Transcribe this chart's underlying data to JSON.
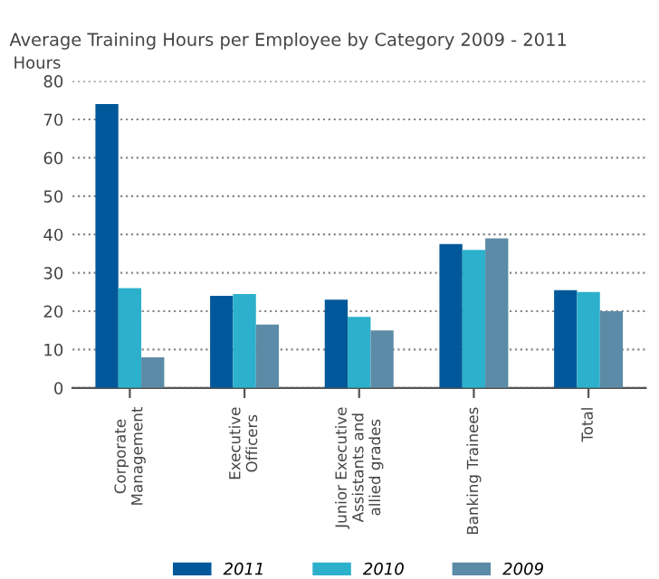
{
  "chart_data": {
    "type": "bar",
    "title": "Average Training Hours per Employee by Category 2009 - 2011",
    "ylabel": "Hours",
    "categories": [
      "Corporate\nManagement",
      "Executive\nOfficers",
      "Junior Executive\nAssistants and\nallied grades",
      "Banking Trainees",
      "Total"
    ],
    "series": [
      {
        "name": "2011",
        "color": "#00589a",
        "values": [
          74,
          24,
          23,
          37.5,
          25.5
        ]
      },
      {
        "name": "2010",
        "color": "#2cb0cc",
        "values": [
          26,
          24.5,
          18.5,
          36,
          25
        ]
      },
      {
        "name": "2009",
        "color": "#5b8ba6",
        "values": [
          8,
          16.5,
          15,
          39,
          20
        ]
      }
    ],
    "ylim": [
      0,
      80
    ],
    "yticks": [
      0,
      10,
      20,
      30,
      40,
      50,
      60,
      70,
      80
    ],
    "grid": "y",
    "legend": "bottom"
  }
}
